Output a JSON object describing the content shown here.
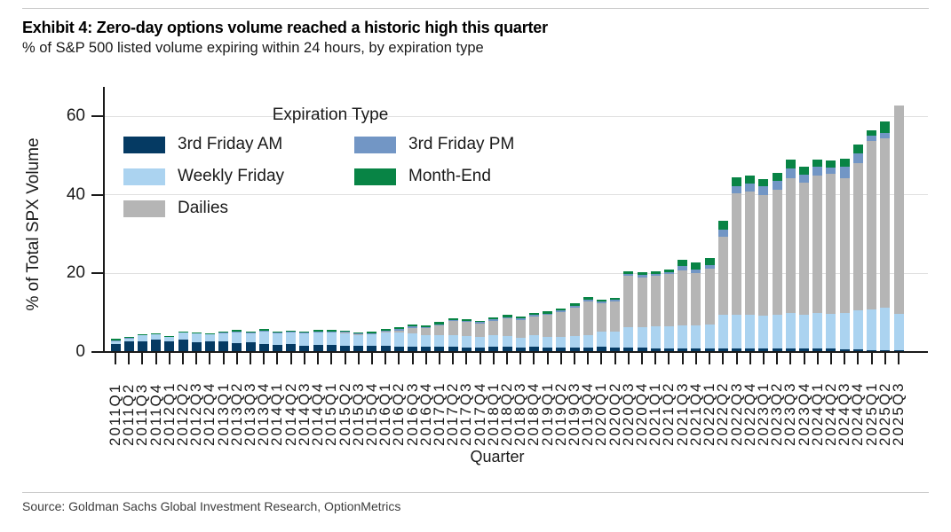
{
  "header": {
    "title": "Exhibit 4: Zero-day options volume reached a historic high this quarter",
    "subtitle": "% of S&P 500 listed volume expiring within 24 hours, by expiration type"
  },
  "footer": {
    "source": "Source: Goldman Sachs Global Investment Research, OptionMetrics"
  },
  "chart_data": {
    "type": "bar",
    "stacked": true,
    "title": "Exhibit 4: Zero-day options volume reached a historic high this quarter",
    "legend_title": "Expiration Type",
    "legend_position": "upper-left-inside",
    "grid": "horizontal",
    "xlabel": "Quarter",
    "ylabel": "% of Total SPX Volume",
    "ylim": [
      0,
      65
    ],
    "yticks": [
      0,
      20,
      40,
      60
    ],
    "axis_color": "#1a1a1a",
    "gridline_color": "#e0e0e0",
    "categories": [
      "2011Q1",
      "2011Q2",
      "2011Q3",
      "2011Q4",
      "2012Q1",
      "2012Q2",
      "2012Q3",
      "2012Q4",
      "2013Q1",
      "2013Q2",
      "2013Q3",
      "2013Q4",
      "2014Q1",
      "2014Q2",
      "2014Q3",
      "2014Q4",
      "2015Q1",
      "2015Q2",
      "2015Q3",
      "2015Q4",
      "2016Q1",
      "2016Q2",
      "2016Q3",
      "2016Q4",
      "2017Q1",
      "2017Q2",
      "2017Q3",
      "2017Q4",
      "2018Q1",
      "2018Q2",
      "2018Q3",
      "2018Q4",
      "2019Q1",
      "2019Q2",
      "2019Q3",
      "2019Q4",
      "2020Q1",
      "2020Q2",
      "2020Q3",
      "2020Q4",
      "2021Q1",
      "2021Q2",
      "2021Q3",
      "2021Q4",
      "2022Q1",
      "2022Q2",
      "2022Q3",
      "2022Q4",
      "2023Q1",
      "2023Q2",
      "2023Q3",
      "2023Q4",
      "2024Q1",
      "2024Q2",
      "2024Q3",
      "2024Q4",
      "2025Q1",
      "2025Q2",
      "2025Q3"
    ],
    "series": [
      {
        "name": "3rd Friday AM",
        "color": "#053a63",
        "values": [
          2.0,
          2.5,
          2.6,
          3.0,
          2.5,
          3.1,
          2.4,
          2.6,
          2.6,
          2.2,
          2.3,
          2.0,
          1.8,
          1.9,
          1.5,
          1.7,
          1.6,
          1.5,
          1.5,
          1.4,
          1.5,
          1.3,
          1.3,
          1.2,
          1.2,
          1.2,
          1.1,
          1.1,
          1.3,
          1.2,
          1.0,
          1.3,
          1.1,
          1.1,
          1.1,
          1.1,
          1.2,
          1.0,
          1.0,
          1.0,
          0.9,
          0.9,
          0.8,
          0.8,
          0.8,
          0.8,
          0.8,
          0.8,
          0.8,
          0.8,
          0.8,
          0.7,
          0.7,
          0.7,
          0.6,
          0.5,
          0.4,
          0.4,
          0.3
        ]
      },
      {
        "name": "Weekly Friday",
        "color": "#abd3f0",
        "values": [
          0.7,
          0.8,
          1.7,
          1.5,
          1.3,
          1.8,
          2.3,
          1.9,
          2.2,
          2.9,
          2.5,
          3.3,
          2.9,
          3.0,
          3.3,
          3.3,
          3.3,
          3.3,
          2.9,
          3.1,
          3.4,
          3.5,
          3.3,
          3.1,
          3.0,
          3.1,
          2.8,
          2.6,
          2.8,
          2.7,
          2.5,
          2.8,
          2.6,
          2.7,
          2.9,
          3.1,
          3.8,
          4.2,
          5.2,
          5.3,
          5.5,
          5.6,
          5.8,
          5.9,
          6.0,
          8.7,
          8.5,
          8.6,
          8.4,
          8.6,
          9.0,
          8.8,
          9.2,
          9.0,
          9.2,
          10.0,
          10.3,
          10.8,
          9.4
        ]
      },
      {
        "name": "Dailies",
        "color": "#b5b5b5",
        "values": [
          0,
          0,
          0,
          0,
          0,
          0,
          0,
          0,
          0,
          0,
          0,
          0,
          0,
          0,
          0,
          0.1,
          0.1,
          0.1,
          0.1,
          0.1,
          0.2,
          0.6,
          1.5,
          1.6,
          2.5,
          3.5,
          3.6,
          3.5,
          3.7,
          4.5,
          4.6,
          4.8,
          5.6,
          6.3,
          7.3,
          8.7,
          7.3,
          7.6,
          13.1,
          12.7,
          12.9,
          13.2,
          14.2,
          13.4,
          14.3,
          19.8,
          31.2,
          31.4,
          30.8,
          32.0,
          34.5,
          33.7,
          35.1,
          35.7,
          34.5,
          37.5,
          43.1,
          43.2,
          53.2
        ]
      },
      {
        "name": "3rd Friday PM",
        "color": "#7296c5",
        "values": [
          0.1,
          0.1,
          0.1,
          0.1,
          0.1,
          0.1,
          0.1,
          0.1,
          0.1,
          0.1,
          0.1,
          0.1,
          0.1,
          0.1,
          0.1,
          0.1,
          0.1,
          0.1,
          0.1,
          0.1,
          0.2,
          0.3,
          0.3,
          0.3,
          0.3,
          0.3,
          0.3,
          0.3,
          0.4,
          0.4,
          0.4,
          0.4,
          0.4,
          0.4,
          0.4,
          0.4,
          0.4,
          0.4,
          0.6,
          0.6,
          0.6,
          0.6,
          1.0,
          0.9,
          1.0,
          1.8,
          1.8,
          2.0,
          2.2,
          2.1,
          2.5,
          2.0,
          2.1,
          1.6,
          2.8,
          2.7,
          1.4,
          1.5,
          0.0
        ]
      },
      {
        "name": "Month-End",
        "color": "#088445",
        "values": [
          0.4,
          0.4,
          0.1,
          0.1,
          0.1,
          0.1,
          0.1,
          0.1,
          0.3,
          0.4,
          0.2,
          0.3,
          0.2,
          0.3,
          0.3,
          0.4,
          0.4,
          0.4,
          0.3,
          0.4,
          0.5,
          0.6,
          0.5,
          0.4,
          0.5,
          0.5,
          0.4,
          0.4,
          0.5,
          0.5,
          0.4,
          0.5,
          0.5,
          0.5,
          0.6,
          0.6,
          0.5,
          0.5,
          0.7,
          0.7,
          0.7,
          0.7,
          1.6,
          1.7,
          1.8,
          2.3,
          2.2,
          2.2,
          1.9,
          2.1,
          2.2,
          1.9,
          1.9,
          1.8,
          2.2,
          2.1,
          1.2,
          2.9,
          0.0
        ]
      }
    ]
  }
}
